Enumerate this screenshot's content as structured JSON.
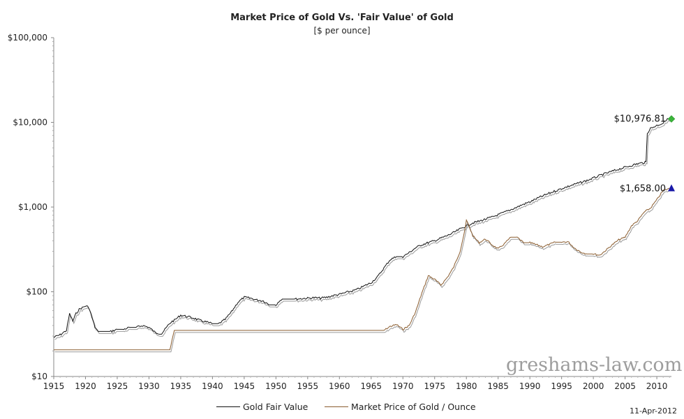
{
  "chart_data": {
    "type": "line",
    "title": "Market Price of Gold Vs. 'Fair Value' of Gold",
    "subtitle": "[$ per ounce]",
    "yscale": "log",
    "ylim": [
      10,
      100000
    ],
    "xlim": [
      1915,
      2012.3
    ],
    "y_ticks": [
      {
        "value": 10,
        "label": "$10"
      },
      {
        "value": 100,
        "label": "$100"
      },
      {
        "value": 1000,
        "label": "$1,000"
      },
      {
        "value": 10000,
        "label": "$10,000"
      },
      {
        "value": 100000,
        "label": "$100,000"
      }
    ],
    "x_ticks": [
      1915,
      1920,
      1925,
      1930,
      1935,
      1940,
      1945,
      1950,
      1955,
      1960,
      1965,
      1970,
      1975,
      1980,
      1985,
      1990,
      1995,
      2000,
      2005,
      2010
    ],
    "series": [
      {
        "name": "Gold Fair Value",
        "color": "#111111",
        "shadow_color": "#9a9a9a",
        "points": [
          [
            1915,
            29
          ],
          [
            1916,
            31
          ],
          [
            1917,
            35
          ],
          [
            1917.5,
            55
          ],
          [
            1918,
            45
          ],
          [
            1918.5,
            55
          ],
          [
            1919,
            62
          ],
          [
            1920,
            68
          ],
          [
            1920.5,
            66
          ],
          [
            1921,
            50
          ],
          [
            1921.5,
            38
          ],
          [
            1922,
            34
          ],
          [
            1923,
            34
          ],
          [
            1924,
            34
          ],
          [
            1925,
            36
          ],
          [
            1926,
            36
          ],
          [
            1927,
            38
          ],
          [
            1928,
            38
          ],
          [
            1929,
            40
          ],
          [
            1930,
            38
          ],
          [
            1931,
            33
          ],
          [
            1932,
            32
          ],
          [
            1933,
            40
          ],
          [
            1933.5,
            44
          ],
          [
            1934,
            46
          ],
          [
            1935,
            53
          ],
          [
            1936,
            51
          ],
          [
            1937,
            49
          ],
          [
            1938,
            46
          ],
          [
            1939,
            44
          ],
          [
            1940,
            42
          ],
          [
            1941,
            42
          ],
          [
            1942,
            47
          ],
          [
            1943,
            58
          ],
          [
            1944,
            75
          ],
          [
            1945,
            86
          ],
          [
            1946,
            84
          ],
          [
            1947,
            80
          ],
          [
            1948,
            78
          ],
          [
            1949,
            70
          ],
          [
            1950,
            70
          ],
          [
            1950.5,
            78
          ],
          [
            1951,
            82
          ],
          [
            1952,
            82
          ],
          [
            1953,
            82
          ],
          [
            1954,
            83
          ],
          [
            1955,
            84
          ],
          [
            1956,
            85
          ],
          [
            1957,
            84
          ],
          [
            1958,
            86
          ],
          [
            1959,
            90
          ],
          [
            1960,
            93
          ],
          [
            1961,
            98
          ],
          [
            1962,
            102
          ],
          [
            1963,
            108
          ],
          [
            1964,
            118
          ],
          [
            1965,
            128
          ],
          [
            1966,
            150
          ],
          [
            1967,
            190
          ],
          [
            1968,
            240
          ],
          [
            1969,
            260
          ],
          [
            1970,
            260
          ],
          [
            1971,
            290
          ],
          [
            1972,
            330
          ],
          [
            1973,
            360
          ],
          [
            1974,
            380
          ],
          [
            1975,
            400
          ],
          [
            1976,
            430
          ],
          [
            1977,
            460
          ],
          [
            1978,
            500
          ],
          [
            1979,
            550
          ],
          [
            1980,
            600
          ],
          [
            1981,
            650
          ],
          [
            1982,
            680
          ],
          [
            1983,
            720
          ],
          [
            1984,
            760
          ],
          [
            1985,
            810
          ],
          [
            1986,
            870
          ],
          [
            1987,
            930
          ],
          [
            1988,
            1000
          ],
          [
            1989,
            1080
          ],
          [
            1990,
            1150
          ],
          [
            1991,
            1250
          ],
          [
            1992,
            1350
          ],
          [
            1993,
            1450
          ],
          [
            1994,
            1550
          ],
          [
            1995,
            1650
          ],
          [
            1996,
            1750
          ],
          [
            1997,
            1850
          ],
          [
            1998,
            1950
          ],
          [
            1999,
            2060
          ],
          [
            2000,
            2200
          ],
          [
            2001,
            2350
          ],
          [
            2002,
            2500
          ],
          [
            2003,
            2650
          ],
          [
            2004,
            2800
          ],
          [
            2005,
            2950
          ],
          [
            2006,
            3100
          ],
          [
            2007,
            3250
          ],
          [
            2008,
            3350
          ],
          [
            2008.3,
            3400
          ],
          [
            2008.5,
            7500
          ],
          [
            2009,
            8500
          ],
          [
            2010,
            9200
          ],
          [
            2011,
            9800
          ],
          [
            2011.5,
            10800
          ],
          [
            2012,
            10976.81
          ]
        ],
        "end_label": "$10,976.81",
        "end_value": 10976.81,
        "end_x": 2012.3,
        "marker": "diamond",
        "marker_color": "#3bb53b"
      },
      {
        "name": "Market Price of Gold / Ounce",
        "color": "#8a5c2e",
        "shadow_color": "#9a9a9a",
        "points": [
          [
            1915,
            20.67
          ],
          [
            1933.3,
            20.67
          ],
          [
            1934,
            35
          ],
          [
            1967,
            35
          ],
          [
            1968,
            39
          ],
          [
            1969,
            41
          ],
          [
            1970,
            36
          ],
          [
            1971,
            40
          ],
          [
            1972,
            58
          ],
          [
            1973,
            97
          ],
          [
            1974,
            155
          ],
          [
            1975,
            140
          ],
          [
            1976,
            120
          ],
          [
            1977,
            148
          ],
          [
            1978,
            195
          ],
          [
            1979,
            300
          ],
          [
            1979.8,
            550
          ],
          [
            1980,
            700
          ],
          [
            1980.4,
            600
          ],
          [
            1981,
            460
          ],
          [
            1982,
            380
          ],
          [
            1983,
            420
          ],
          [
            1984,
            360
          ],
          [
            1985,
            320
          ],
          [
            1986,
            370
          ],
          [
            1987,
            440
          ],
          [
            1988,
            440
          ],
          [
            1989,
            380
          ],
          [
            1990,
            380
          ],
          [
            1991,
            360
          ],
          [
            1992,
            340
          ],
          [
            1993,
            360
          ],
          [
            1994,
            385
          ],
          [
            1995,
            385
          ],
          [
            1996,
            390
          ],
          [
            1997,
            330
          ],
          [
            1998,
            295
          ],
          [
            1999,
            280
          ],
          [
            2000,
            280
          ],
          [
            2001,
            270
          ],
          [
            2002,
            310
          ],
          [
            2003,
            360
          ],
          [
            2004,
            410
          ],
          [
            2005,
            440
          ],
          [
            2006,
            600
          ],
          [
            2007,
            690
          ],
          [
            2008,
            870
          ],
          [
            2009,
            970
          ],
          [
            2010,
            1220
          ],
          [
            2011,
            1570
          ],
          [
            2012,
            1658
          ]
        ],
        "end_label": "$1,658.00",
        "end_value": 1658.0,
        "end_x": 2012.3,
        "marker": "triangle",
        "marker_color": "#1a1aa8"
      }
    ],
    "legend": [
      "Gold Fair Value",
      "Market Price of Gold / Ounce"
    ],
    "legend_position": "bottom"
  },
  "watermark": "greshams-law.com",
  "date": "11-Apr-2012"
}
